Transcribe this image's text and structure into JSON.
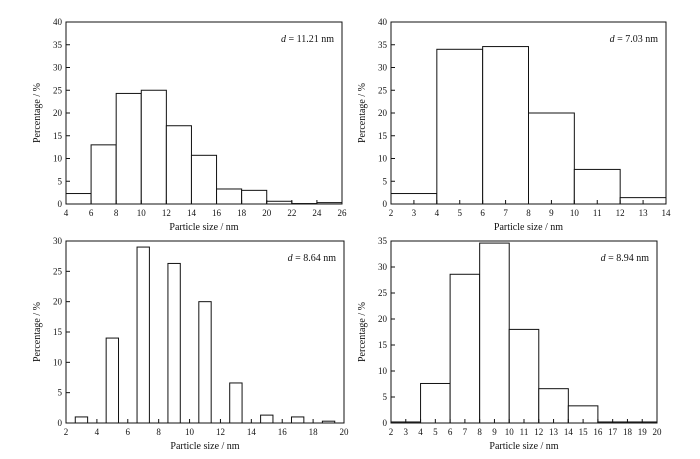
{
  "chart_data": [
    {
      "type": "bar",
      "annotation": {
        "var": "d",
        "text": " = 11.21 nm"
      },
      "xlabel": "Particle size / nm",
      "ylabel": "Percentage / %",
      "xlim": [
        4,
        26
      ],
      "ylim": [
        0,
        40
      ],
      "xticks": [
        4,
        6,
        8,
        10,
        12,
        14,
        16,
        18,
        20,
        22,
        24,
        26
      ],
      "yticks": [
        0,
        5,
        10,
        15,
        20,
        25,
        30,
        35,
        40
      ],
      "bar_width": 2,
      "bars": [
        {
          "x": 5,
          "value": 2.3
        },
        {
          "x": 7,
          "value": 13.0
        },
        {
          "x": 9,
          "value": 24.3
        },
        {
          "x": 11,
          "value": 25.0
        },
        {
          "x": 13,
          "value": 17.2
        },
        {
          "x": 15,
          "value": 10.7
        },
        {
          "x": 17,
          "value": 3.3
        },
        {
          "x": 19,
          "value": 3.0
        },
        {
          "x": 21,
          "value": 0.6
        },
        {
          "x": 23,
          "value": 0.1
        },
        {
          "x": 25,
          "value": 0.3
        }
      ]
    },
    {
      "type": "bar",
      "annotation": {
        "var": "d",
        "text": " = 7.03 nm"
      },
      "xlabel": "Particle size / nm",
      "ylabel": "Percentage / %",
      "xlim": [
        2,
        14
      ],
      "ylim": [
        0,
        40
      ],
      "xticks": [
        2,
        3,
        4,
        5,
        6,
        7,
        8,
        9,
        10,
        11,
        12,
        13,
        14
      ],
      "yticks": [
        0,
        5,
        10,
        15,
        20,
        25,
        30,
        35,
        40
      ],
      "bar_width": 2,
      "bars": [
        {
          "x": 3,
          "value": 2.3
        },
        {
          "x": 5,
          "value": 34.0
        },
        {
          "x": 7,
          "value": 34.6
        },
        {
          "x": 9,
          "value": 20.0
        },
        {
          "x": 11,
          "value": 7.6
        },
        {
          "x": 13,
          "value": 1.4
        }
      ]
    },
    {
      "type": "bar",
      "annotation": {
        "var": "d",
        "text": " = 8.64 nm"
      },
      "xlabel": "Particle size / nm",
      "ylabel": "Percentage / %",
      "xlim": [
        2,
        20
      ],
      "ylim": [
        0,
        30
      ],
      "xticks": [
        2,
        4,
        6,
        8,
        10,
        12,
        14,
        16,
        18,
        20
      ],
      "yticks": [
        0,
        5,
        10,
        15,
        20,
        25,
        30
      ],
      "bar_width": 0.8,
      "bars": [
        {
          "x": 3,
          "value": 1.0
        },
        {
          "x": 5,
          "value": 14.0
        },
        {
          "x": 7,
          "value": 29.0
        },
        {
          "x": 9,
          "value": 26.3
        },
        {
          "x": 11,
          "value": 20.0
        },
        {
          "x": 13,
          "value": 6.6
        },
        {
          "x": 15,
          "value": 1.3
        },
        {
          "x": 17,
          "value": 1.0
        },
        {
          "x": 19,
          "value": 0.3
        }
      ]
    },
    {
      "type": "bar",
      "annotation": {
        "var": "d",
        "text": " = 8.94 nm"
      },
      "xlabel": "Particle size / nm",
      "ylabel": "Percentage / %",
      "xlim": [
        2,
        20
      ],
      "ylim": [
        0,
        35
      ],
      "xticks": [
        2,
        3,
        4,
        5,
        6,
        7,
        8,
        9,
        10,
        11,
        12,
        13,
        14,
        15,
        16,
        17,
        18,
        19,
        20
      ],
      "yticks": [
        0,
        5,
        10,
        15,
        20,
        25,
        30,
        35
      ],
      "bar_width": 2,
      "bars": [
        {
          "x": 3,
          "value": 0.2
        },
        {
          "x": 5,
          "value": 7.6
        },
        {
          "x": 7,
          "value": 28.6
        },
        {
          "x": 9,
          "value": 34.6
        },
        {
          "x": 11,
          "value": 18.0
        },
        {
          "x": 13,
          "value": 6.6
        },
        {
          "x": 15,
          "value": 3.3
        },
        {
          "x": 17,
          "value": 0.2
        },
        {
          "x": 19,
          "value": 0.2
        }
      ]
    }
  ]
}
